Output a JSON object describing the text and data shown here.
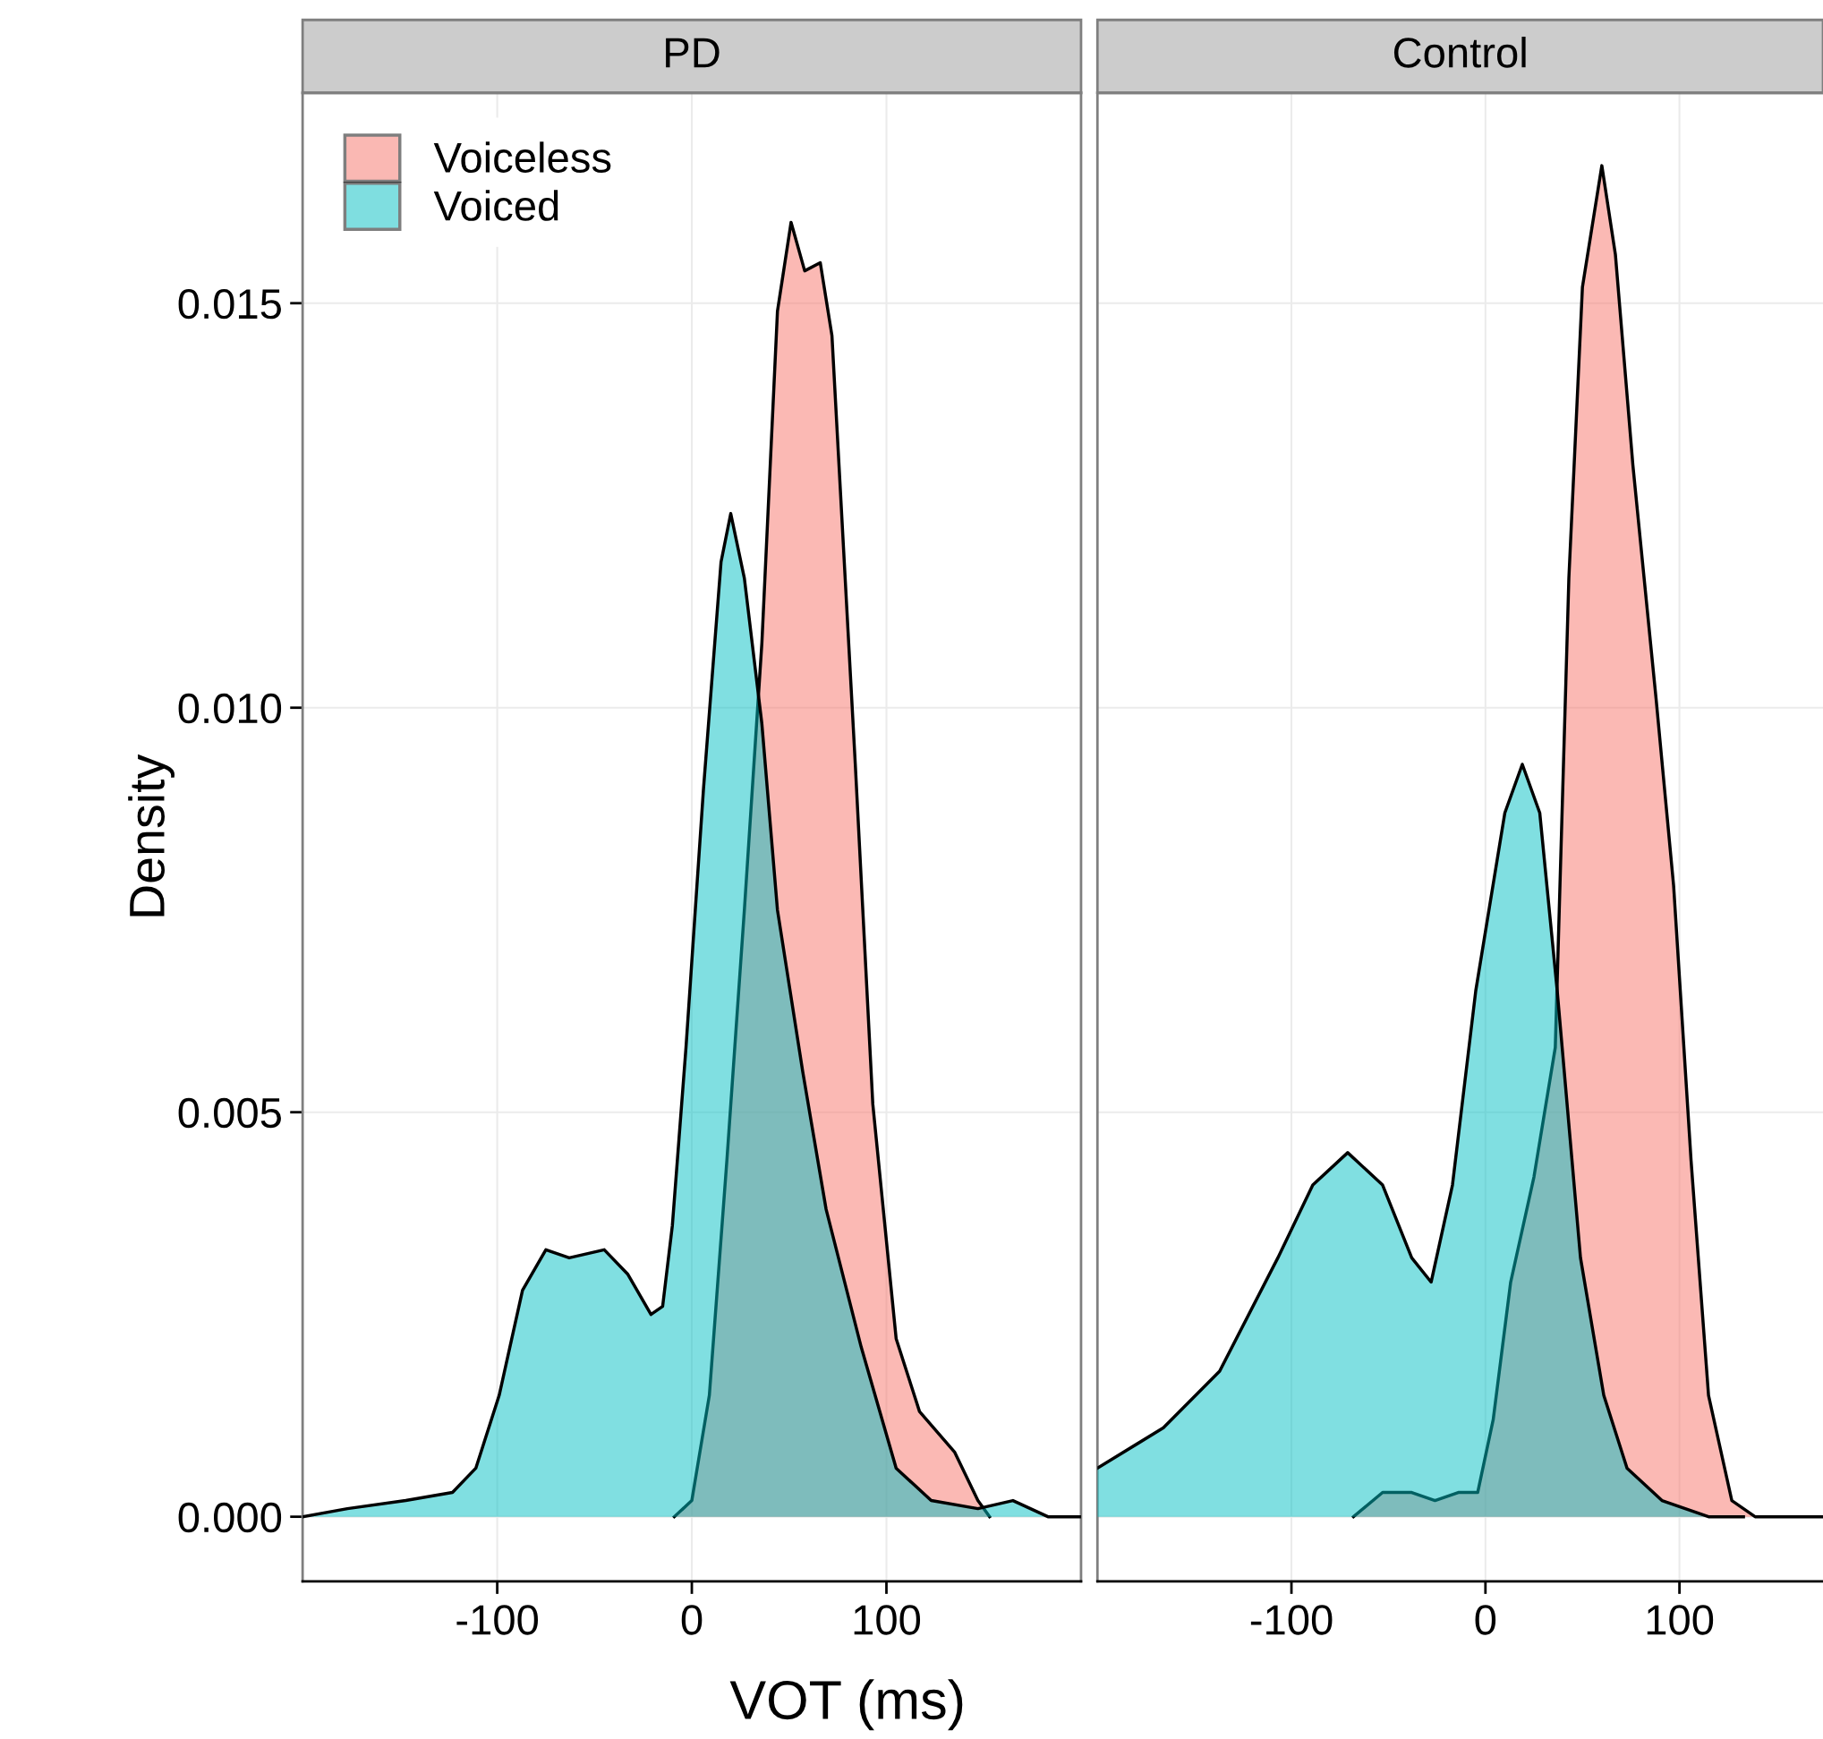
{
  "chart_data": [
    {
      "type": "area",
      "title": "PD",
      "ylabel": "Density",
      "xlabel": "VOT (ms)",
      "legend": "top left",
      "grid": true,
      "xlim": [
        -200,
        200
      ],
      "xticks": [
        -100,
        0,
        100
      ],
      "ylim": [
        -0.0008,
        0.0176
      ],
      "yticks": [
        {
          "value": 0,
          "label": "0.000"
        },
        {
          "value": 0.005,
          "label": "0.005"
        },
        {
          "value": 0.01,
          "label": "0.010"
        },
        {
          "value": 0.015,
          "label": "0.015"
        }
      ],
      "series": [
        {
          "name": "Voiceless",
          "color": "#fbb9b4",
          "x": [
            -9,
            0,
            9,
            18,
            27,
            36,
            44,
            51,
            58,
            66,
            72,
            84,
            93,
            105,
            117,
            135,
            147,
            153
          ],
          "values": [
            0,
            0.0002,
            0.0015,
            0.0044,
            0.0075,
            0.0108,
            0.0149,
            0.016,
            0.0154,
            0.0155,
            0.0146,
            0.0093,
            0.0051,
            0.0022,
            0.0013,
            0.0008,
            0.0002,
            0
          ]
        },
        {
          "name": "Voiced",
          "color": "#80dfe1",
          "x": [
            -200,
            -177,
            -147,
            -123,
            -111,
            -99,
            -87,
            -75,
            -63,
            -45,
            -33,
            -21,
            -15,
            -10,
            -3,
            6,
            15,
            20,
            27,
            36,
            44,
            57,
            69,
            87,
            105,
            123,
            147,
            165,
            183,
            200
          ],
          "values": [
            0,
            0.0001,
            0.0002,
            0.0003,
            0.0006,
            0.0015,
            0.0028,
            0.0033,
            0.0032,
            0.0033,
            0.003,
            0.0025,
            0.0026,
            0.0036,
            0.0058,
            0.009,
            0.0118,
            0.0124,
            0.0116,
            0.0098,
            0.0075,
            0.0055,
            0.0038,
            0.0021,
            0.0006,
            0.0002,
            0.0001,
            0.0002,
            0,
            0
          ]
        }
      ]
    },
    {
      "type": "area",
      "title": "Control",
      "grid": true,
      "tick_labels": "x",
      "xlim": [
        -200,
        174
      ],
      "xticks": [
        -100,
        0,
        100
      ],
      "ylim": [
        -0.0008,
        0.0176
      ],
      "yticks": [
        0,
        0.005,
        0.01,
        0.015
      ],
      "series": [
        {
          "color": "#fbb9b4",
          "x": [
            -68,
            -53,
            -38,
            -26,
            -14,
            -4,
            4,
            13,
            25,
            36,
            43,
            50,
            60,
            67,
            76,
            88,
            97,
            106,
            115,
            127,
            139,
            174
          ],
          "values": [
            0,
            0.0003,
            0.0003,
            0.0002,
            0.0003,
            0.0003,
            0.0012,
            0.0029,
            0.0042,
            0.0058,
            0.0116,
            0.0152,
            0.0167,
            0.0156,
            0.013,
            0.0101,
            0.0078,
            0.0044,
            0.0015,
            0.0002,
            0,
            0
          ]
        },
        {
          "color": "#80dfe1",
          "x": [
            -200,
            -166,
            -137,
            -107,
            -89,
            -71,
            -53,
            -38,
            -28,
            -17,
            -5,
            10,
            19,
            28,
            37,
            49,
            61,
            73,
            91,
            115,
            133
          ],
          "values": [
            0.0006,
            0.0011,
            0.0018,
            0.0032,
            0.0041,
            0.0045,
            0.0041,
            0.0032,
            0.0029,
            0.0041,
            0.0065,
            0.0087,
            0.0093,
            0.0087,
            0.0065,
            0.0032,
            0.0015,
            0.0006,
            0.0002,
            0,
            0
          ]
        }
      ]
    }
  ]
}
